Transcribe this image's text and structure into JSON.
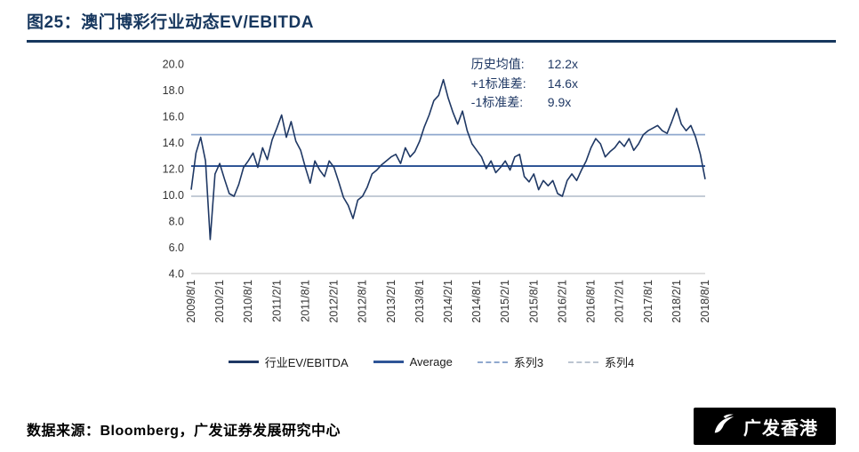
{
  "header": {
    "title": "图25：澳门博彩行业动态EV/EBITDA"
  },
  "annotations": {
    "rows": [
      {
        "label": "历史均值:",
        "value": "12.2x"
      },
      {
        "label": "+1标准差:",
        "value": "14.6x"
      },
      {
        "label": "-1标准差:",
        "value": "9.9x"
      }
    ]
  },
  "footer": {
    "source": "数据来源：Bloomberg，广发证券发展研究中心",
    "logo_text": "广发香港"
  },
  "colors": {
    "title_navy": "#17375E",
    "main_line": "#1F3864",
    "average_line": "#2F5597",
    "plus1sd_line": "#8FA8CE",
    "minus1sd_line": "#BCC5D1",
    "axis_gray": "#BFBFBF"
  },
  "chart_data": {
    "type": "line",
    "title": "澳门博彩行业动态EV/EBITDA",
    "ylabel": "",
    "xlabel": "",
    "ylim": [
      4.0,
      20.0
    ],
    "yticks": [
      20.0,
      18.0,
      16.0,
      14.0,
      12.0,
      10.0,
      8.0,
      6.0,
      4.0
    ],
    "grid": false,
    "legend_position": "bottom",
    "x_start": "2009/8/1",
    "x_step_months": 1,
    "x_tick_every": 6,
    "x_labels": [
      "2009/8/1",
      "2010/2/1",
      "2010/8/1",
      "2011/2/1",
      "2011/8/1",
      "2012/2/1",
      "2012/8/1",
      "2013/2/1",
      "2013/8/1",
      "2014/2/1",
      "2014/8/1",
      "2015/2/1",
      "2015/8/1",
      "2016/2/1",
      "2016/8/1",
      "2017/2/1",
      "2017/8/1",
      "2018/2/1",
      "2018/8/1"
    ],
    "stats": {
      "mean": 12.2,
      "plus1sd": 14.6,
      "minus1sd": 9.9
    },
    "series": [
      {
        "name": "行业EV/EBITDA",
        "type": "values",
        "color": "#1F3864",
        "width": 1.6,
        "values": [
          10.4,
          13.2,
          14.4,
          12.6,
          6.6,
          11.6,
          12.4,
          11.2,
          10.1,
          9.9,
          10.8,
          12.1,
          12.6,
          13.2,
          12.1,
          13.6,
          12.7,
          14.2,
          15.1,
          16.1,
          14.4,
          15.6,
          14.1,
          13.4,
          12.1,
          10.9,
          12.6,
          11.9,
          11.4,
          12.6,
          12.1,
          11.0,
          9.8,
          9.2,
          8.2,
          9.6,
          9.9,
          10.6,
          11.6,
          11.9,
          12.3,
          12.6,
          12.9,
          13.1,
          12.4,
          13.6,
          12.9,
          13.3,
          14.1,
          15.2,
          16.1,
          17.2,
          17.6,
          18.8,
          17.4,
          16.3,
          15.4,
          16.4,
          14.9,
          13.9,
          13.4,
          12.9,
          12.0,
          12.6,
          11.7,
          12.1,
          12.6,
          11.9,
          12.9,
          13.1,
          11.4,
          11.0,
          11.6,
          10.4,
          11.1,
          10.7,
          11.1,
          10.1,
          9.9,
          11.1,
          11.6,
          11.1,
          11.9,
          12.6,
          13.6,
          14.3,
          13.9,
          12.9,
          13.3,
          13.6,
          14.1,
          13.7,
          14.3,
          13.4,
          13.9,
          14.6,
          14.9,
          15.1,
          15.3,
          14.9,
          14.7,
          15.6,
          16.6,
          15.4,
          14.9,
          15.3,
          14.4,
          13.1,
          11.2
        ]
      },
      {
        "name": "Average",
        "type": "constant",
        "value": 12.2,
        "color": "#2F5597",
        "width": 2
      },
      {
        "name": "系列3",
        "type": "constant",
        "value": 14.6,
        "color": "#8FA8CE",
        "width": 1.8,
        "dash": true
      },
      {
        "name": "系列4",
        "type": "constant",
        "value": 9.9,
        "color": "#BCC5D1",
        "width": 1.8,
        "dash": true
      }
    ]
  }
}
